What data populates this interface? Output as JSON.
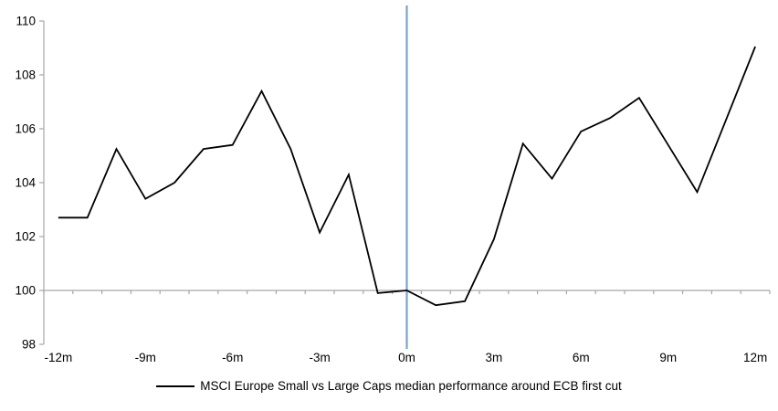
{
  "chart_data": {
    "type": "line",
    "title": "",
    "xlabel": "",
    "ylabel": "",
    "x": [
      -12,
      -11,
      -10,
      -9,
      -8,
      -7,
      -6,
      -5,
      -4,
      -3,
      -2,
      -1,
      0,
      1,
      2,
      3,
      4,
      5,
      6,
      7,
      8,
      9,
      10,
      11,
      12
    ],
    "series": [
      {
        "name": "MSCI Europe Small vs Large Caps median performance around ECB first cut",
        "values": [
          102.7,
          102.7,
          105.25,
          103.4,
          104.0,
          105.25,
          105.4,
          107.4,
          105.25,
          102.15,
          104.3,
          99.9,
          100.0,
          99.45,
          99.6,
          101.9,
          105.45,
          104.15,
          105.9,
          106.4,
          107.15,
          105.4,
          103.65,
          106.35,
          109.05
        ]
      }
    ],
    "x_tick_positions": [
      -12,
      -9,
      -6,
      -3,
      0,
      3,
      6,
      9,
      12
    ],
    "x_tick_labels": [
      "-12m",
      "-9m",
      "-6m",
      "-3m",
      "0m",
      "3m",
      "6m",
      "9m",
      "12m"
    ],
    "y_ticks": [
      98,
      100,
      102,
      104,
      106,
      108,
      110
    ],
    "y_tick_labels": [
      "98",
      "100",
      "102",
      "104",
      "106",
      "108",
      "110"
    ],
    "xlim": [
      -12.5,
      12.5
    ],
    "ylim": [
      98,
      110
    ],
    "baseline_value": 100,
    "x_minor_tick_every_months": 1,
    "event_line_x": 0,
    "grid": "off",
    "legend_position": "bottom-center",
    "colors": {
      "series": "#000000",
      "axis": "#a6a6a6",
      "event_line": "#7ba3cf",
      "text": "#000000"
    }
  }
}
